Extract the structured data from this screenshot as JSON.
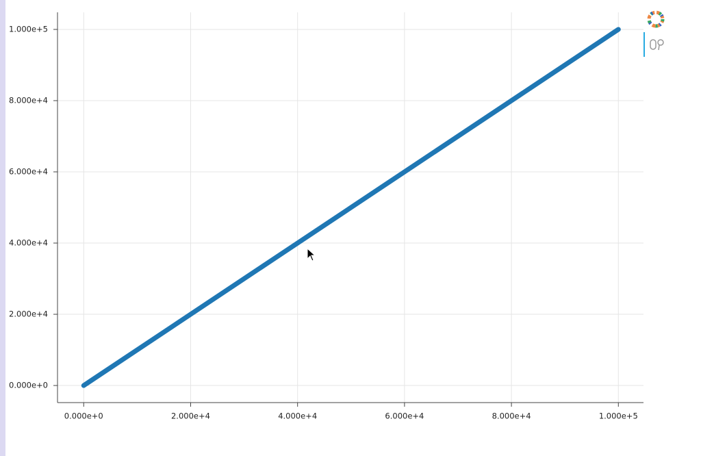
{
  "chart_data": {
    "type": "line",
    "x": [
      0,
      100000
    ],
    "series": [
      {
        "color": "#1f77b4",
        "values": [
          0,
          100000
        ]
      }
    ],
    "xlim": [
      -4900,
      104700
    ],
    "ylim": [
      -4800,
      104800
    ],
    "xticks": [
      {
        "value": 0,
        "label": "0.000e+0"
      },
      {
        "value": 20000,
        "label": "2.000e+4"
      },
      {
        "value": 40000,
        "label": "4.000e+4"
      },
      {
        "value": 60000,
        "label": "6.000e+4"
      },
      {
        "value": 80000,
        "label": "8.000e+4"
      },
      {
        "value": 100000,
        "label": "1.000e+5"
      }
    ],
    "yticks": [
      {
        "value": 0,
        "label": "0.000e+0"
      },
      {
        "value": 20000,
        "label": "2.000e+4"
      },
      {
        "value": 40000,
        "label": "4.000e+4"
      },
      {
        "value": 60000,
        "label": "6.000e+4"
      },
      {
        "value": 80000,
        "label": "8.000e+4"
      },
      {
        "value": 100000,
        "label": "1.000e+5"
      }
    ],
    "grid": true
  }
}
